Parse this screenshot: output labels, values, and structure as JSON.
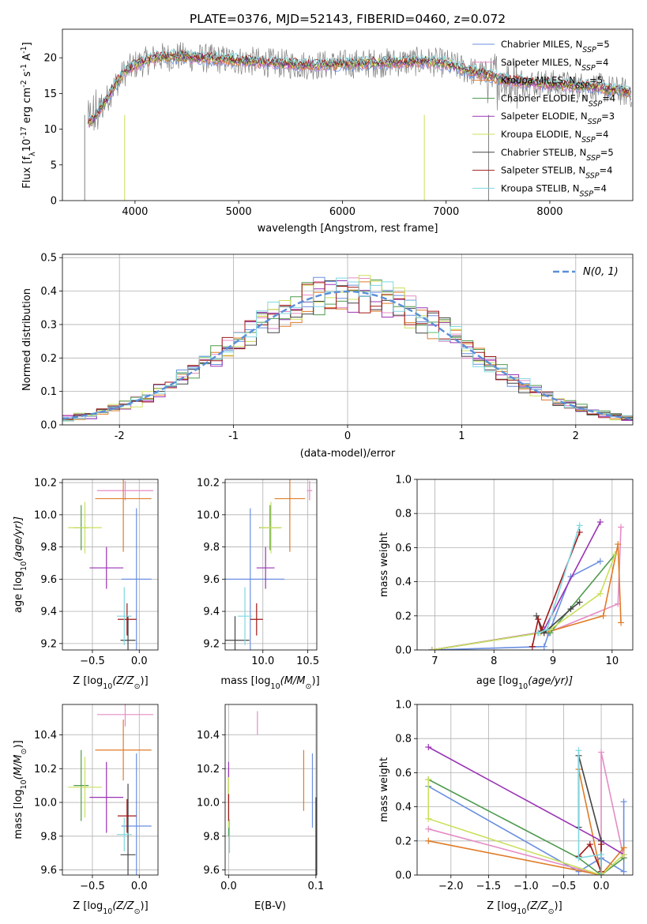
{
  "figure": {
    "title": "PLATE=0376, MJD=52143, FIBERID=0460, z=0.072"
  },
  "colors": {
    "Chabrier MILES": "#6a8fe0",
    "Salpeter MILES": "#e58cc4",
    "Kroupa MILES": "#e07b27",
    "Chabrier ELODIE": "#4f9a4f",
    "Salpeter ELODIE": "#9a33b5",
    "Kroupa ELODIE": "#c9e05c",
    "Chabrier STELIB": "#444444",
    "Salpeter STELIB": "#a01818",
    "Kroupa STELIB": "#7fd8e0",
    "data": "#808080",
    "normal_curve": "#5a8fd8"
  },
  "chart_data": [
    {
      "id": "spectrum",
      "type": "line",
      "xlabel": "wavelength [Angstrom, rest frame]",
      "ylabel": "Flux [f",
      "ylabel_sub": "λ",
      "ylabel_rest": "10",
      "ylabel_exp1": "-17",
      "ylabel_mid": " erg cm",
      "ylabel_exp2": "-2",
      "ylabel_mid2": " s",
      "ylabel_exp3": "-1",
      "ylabel_mid3": " A",
      "ylabel_exp4": "-1",
      "ylabel_end": "]",
      "xlim": [
        3300,
        8800
      ],
      "ylim": [
        0,
        24
      ],
      "xticks": [
        4000,
        5000,
        6000,
        7000,
        8000
      ],
      "yticks": [
        0,
        5,
        10,
        15,
        20
      ],
      "grid": false,
      "legend_position": "upper-right",
      "legend": [
        {
          "label": "Chabrier MILES, N",
          "sub": "SSP",
          "suffix": "=5",
          "color": "#6a8fe0"
        },
        {
          "label": "Salpeter MILES, N",
          "sub": "SSP",
          "suffix": "=4",
          "color": "#e58cc4"
        },
        {
          "label": "Kroupa MILES, N",
          "sub": "SSP",
          "suffix": "=5",
          "color": "#e07b27"
        },
        {
          "label": "Chabrier ELODIE, N",
          "sub": "SSP",
          "suffix": "=4",
          "color": "#4f9a4f"
        },
        {
          "label": "Salpeter ELODIE, N",
          "sub": "SSP",
          "suffix": "=3",
          "color": "#9a33b5"
        },
        {
          "label": "Kroupa ELODIE, N",
          "sub": "SSP",
          "suffix": "=4",
          "color": "#c9e05c"
        },
        {
          "label": "Chabrier STELIB, N",
          "sub": "SSP",
          "suffix": "=5",
          "color": "#444444"
        },
        {
          "label": "Salpeter STELIB, N",
          "sub": "SSP",
          "suffix": "=4",
          "color": "#a01818"
        },
        {
          "label": "Kroupa STELIB, N",
          "sub": "SSP",
          "suffix": "=4",
          "color": "#7fd8e0"
        }
      ],
      "continuum": {
        "x": [
          3550,
          3600,
          3700,
          3800,
          3900,
          4000,
          4100,
          4200,
          4400,
          4600,
          4800,
          5000,
          5200,
          5400,
          5600,
          5800,
          6000,
          6200,
          6400,
          6600,
          6800,
          7000,
          7200,
          7400,
          7600,
          7800,
          8000,
          8200,
          8400,
          8600,
          8800
        ],
        "y": [
          11.0,
          11.5,
          13.5,
          16.0,
          18.0,
          19.0,
          19.5,
          20.0,
          20.2,
          20.0,
          19.8,
          19.6,
          19.4,
          19.2,
          19.0,
          19.0,
          19.1,
          19.2,
          19.3,
          19.4,
          19.5,
          19.2,
          18.3,
          17.5,
          16.8,
          16.5,
          16.3,
          16.1,
          16.0,
          15.5,
          15.0
        ]
      }
    },
    {
      "id": "residuals",
      "type": "histogram",
      "xlabel": "(data-model)/error",
      "ylabel": "Normed distribution",
      "xlim": [
        -2.5,
        2.5
      ],
      "ylim": [
        0,
        0.51
      ],
      "xticks": [
        -2,
        -1,
        0,
        1,
        2
      ],
      "yticks": [
        0.0,
        0.1,
        0.2,
        0.3,
        0.4,
        0.5
      ],
      "grid": true,
      "legend_position": "upper-right",
      "legend_label": "N(0, 1)",
      "bin_width": 0.1,
      "bin_start": -2.5
    },
    {
      "id": "age-vs-Z",
      "type": "errorbar",
      "xlabel": "Z [log",
      "xlabel_sub": "10",
      "xlabel_end": "(Z/Z",
      "xlabel_sun": "⊙",
      "xlabel_close": ")]",
      "ylabel": "age  [log",
      "ylabel_sub": "10",
      "ylabel_end": "(age/yr)]",
      "xlim": [
        -0.82,
        0.2
      ],
      "ylim": [
        9.16,
        10.22
      ],
      "xticks": [
        -0.5,
        0.0
      ],
      "xticklabels": [
        "−0.5",
        "0.0"
      ],
      "yticks": [
        9.2,
        9.4,
        9.6,
        9.8,
        10.0,
        10.2
      ],
      "grid": true,
      "points": [
        {
          "model": "Chabrier MILES",
          "x": -0.03,
          "xerr": 0.16,
          "y": 9.6,
          "yerr": 0.44
        },
        {
          "model": "Salpeter MILES",
          "x": -0.15,
          "xerr": 0.3,
          "y": 10.15,
          "yerr": 0.06
        },
        {
          "model": "Kroupa MILES",
          "x": -0.17,
          "xerr": 0.3,
          "y": 10.1,
          "yerr": 0.33
        },
        {
          "model": "Chabrier ELODIE",
          "x": -0.62,
          "xerr": 0.08,
          "y": 9.92,
          "yerr": 0.14
        },
        {
          "model": "Salpeter ELODIE",
          "x": -0.35,
          "xerr": 0.18,
          "y": 9.67,
          "yerr": 0.13
        },
        {
          "model": "Kroupa ELODIE",
          "x": -0.58,
          "xerr": 0.18,
          "y": 9.92,
          "yerr": 0.16
        },
        {
          "model": "Chabrier STELIB",
          "x": -0.12,
          "xerr": 0.08,
          "y": 9.22,
          "yerr": 0.15
        },
        {
          "model": "Salpeter STELIB",
          "x": -0.13,
          "xerr": 0.1,
          "y": 9.35,
          "yerr": 0.1
        },
        {
          "model": "Kroupa STELIB",
          "x": -0.16,
          "xerr": 0.08,
          "y": 9.37,
          "yerr": 0.18
        }
      ]
    },
    {
      "id": "age-vs-mass",
      "type": "errorbar",
      "xlabel": "mass [log",
      "xlabel_sub": "10",
      "xlabel_end": "(M/M",
      "xlabel_sun": "⊙",
      "xlabel_close": ")]",
      "xlim": [
        9.58,
        10.6
      ],
      "ylim": [
        9.16,
        10.22
      ],
      "xticks": [
        10.0,
        10.5
      ],
      "xticklabels": [
        "10.0",
        "10.5"
      ],
      "yticks": [
        9.2,
        9.4,
        9.6,
        9.8,
        10.0,
        10.2
      ],
      "grid": true,
      "points": [
        {
          "model": "Chabrier MILES",
          "x": 9.86,
          "xerr": 0.38,
          "y": 9.6,
          "yerr": 0.44
        },
        {
          "model": "Salpeter MILES",
          "x": 10.52,
          "xerr": 0.03,
          "y": 10.15,
          "yerr": 0.06
        },
        {
          "model": "Kroupa MILES",
          "x": 10.3,
          "xerr": 0.17,
          "y": 10.1,
          "yerr": 0.33
        },
        {
          "model": "Chabrier ELODIE",
          "x": 10.08,
          "xerr": 0.12,
          "y": 9.92,
          "yerr": 0.14
        },
        {
          "model": "Salpeter ELODIE",
          "x": 10.03,
          "xerr": 0.1,
          "y": 9.67,
          "yerr": 0.13
        },
        {
          "model": "Kroupa ELODIE",
          "x": 10.09,
          "xerr": 0.12,
          "y": 9.92,
          "yerr": 0.16
        },
        {
          "model": "Chabrier STELIB",
          "x": 9.69,
          "xerr": 0.16,
          "y": 9.22,
          "yerr": 0.15
        },
        {
          "model": "Salpeter STELIB",
          "x": 9.93,
          "xerr": 0.07,
          "y": 9.35,
          "yerr": 0.1
        },
        {
          "model": "Kroupa STELIB",
          "x": 9.8,
          "xerr": 0.08,
          "y": 9.37,
          "yerr": 0.18
        }
      ]
    },
    {
      "id": "mass-weight-vs-age",
      "type": "line",
      "xlabel": "age  [log",
      "xlabel_sub": "10",
      "xlabel_end": "(age/yr)]",
      "ylabel": "mass weight",
      "xlim": [
        6.7,
        10.35
      ],
      "ylim": [
        0,
        1
      ],
      "xticks": [
        7,
        8,
        9,
        10
      ],
      "xticklabels": [
        "7",
        "8",
        "9",
        "10"
      ],
      "yticks": [
        0.0,
        0.2,
        0.4,
        0.6,
        0.8,
        1.0
      ],
      "grid": true,
      "series": [
        {
          "model": "Chabrier MILES",
          "x": [
            6.95,
            8.85,
            8.93,
            9.3,
            9.8
          ],
          "y": [
            0.0,
            0.02,
            0.1,
            0.43,
            0.52
          ]
        },
        {
          "model": "Salpeter MILES",
          "x": [
            6.95,
            8.75,
            8.9,
            10.1,
            10.15
          ],
          "y": [
            0.0,
            0.1,
            0.1,
            0.27,
            0.72
          ]
        },
        {
          "model": "Kroupa MILES",
          "x": [
            6.95,
            8.75,
            8.85,
            9.85,
            10.1,
            10.15
          ],
          "y": [
            0.0,
            0.1,
            0.1,
            0.2,
            0.62,
            0.16
          ]
        },
        {
          "model": "Chabrier ELODIE",
          "x": [
            6.95,
            8.78,
            8.95,
            10.05
          ],
          "y": [
            0.0,
            0.1,
            0.1,
            0.56
          ]
        },
        {
          "model": "Salpeter ELODIE",
          "x": [
            6.95,
            8.75,
            8.85,
            9.8
          ],
          "y": [
            0.0,
            0.1,
            0.12,
            0.75
          ]
        },
        {
          "model": "Kroupa ELODIE",
          "x": [
            6.95,
            8.78,
            8.95,
            9.8,
            10.05
          ],
          "y": [
            0.0,
            0.1,
            0.12,
            0.33,
            0.56
          ]
        },
        {
          "model": "Chabrier STELIB",
          "x": [
            8.72,
            8.85,
            9.3,
            9.45
          ],
          "y": [
            0.2,
            0.1,
            0.24,
            0.28
          ]
        },
        {
          "model": "Salpeter STELIB",
          "x": [
            8.65,
            8.75,
            8.8,
            9.45
          ],
          "y": [
            0.02,
            0.18,
            0.11,
            0.69
          ]
        },
        {
          "model": "Kroupa STELIB",
          "x": [
            8.75,
            8.9,
            9.45
          ],
          "y": [
            0.1,
            0.12,
            0.73
          ]
        }
      ]
    },
    {
      "id": "mass-vs-Z",
      "type": "errorbar",
      "xlabel": "Z [log",
      "xlabel_sub": "10",
      "xlabel_end": "(Z/Z",
      "xlabel_sun": "⊙",
      "xlabel_close": ")]",
      "ylabel": "mass [log",
      "ylabel_sub": "10",
      "ylabel_end": "(M/M",
      "ylabel_sun": "⊙",
      "ylabel_close": ")]",
      "xlim": [
        -0.82,
        0.2
      ],
      "ylim": [
        9.57,
        10.58
      ],
      "xticks": [
        -0.5,
        0.0
      ],
      "xticklabels": [
        "−0.5",
        "0.0"
      ],
      "yticks": [
        9.6,
        9.8,
        10.0,
        10.2,
        10.4
      ],
      "grid": true,
      "points": [
        {
          "model": "Chabrier MILES",
          "x": -0.03,
          "xerr": 0.16,
          "y": 9.86,
          "yerr": 0.43
        },
        {
          "model": "Salpeter MILES",
          "x": -0.15,
          "xerr": 0.3,
          "y": 10.52,
          "yerr": 0.07
        },
        {
          "model": "Kroupa MILES",
          "x": -0.17,
          "xerr": 0.3,
          "y": 10.31,
          "yerr": 0.18
        },
        {
          "model": "Chabrier ELODIE",
          "x": -0.62,
          "xerr": 0.08,
          "y": 10.1,
          "yerr": 0.21
        },
        {
          "model": "Salpeter ELODIE",
          "x": -0.35,
          "xerr": 0.18,
          "y": 10.03,
          "yerr": 0.21
        },
        {
          "model": "Kroupa ELODIE",
          "x": -0.58,
          "xerr": 0.18,
          "y": 10.09,
          "yerr": 0.18
        },
        {
          "model": "Chabrier STELIB",
          "x": -0.12,
          "xerr": 0.08,
          "y": 9.69,
          "yerr": 0.42
        },
        {
          "model": "Salpeter STELIB",
          "x": -0.13,
          "xerr": 0.1,
          "y": 9.92,
          "yerr": 0.1
        },
        {
          "model": "Kroupa STELIB",
          "x": -0.16,
          "xerr": 0.08,
          "y": 9.81,
          "yerr": 0.1
        }
      ]
    },
    {
      "id": "mass-vs-ebv",
      "type": "errorbar",
      "xlabel": "E(B-V)",
      "xlim": [
        -0.004,
        0.101
      ],
      "ylim": [
        9.57,
        10.58
      ],
      "xticks": [
        0.0,
        0.1
      ],
      "xticklabels": [
        "0.0",
        "0.1"
      ],
      "yticks": [
        9.6,
        9.8,
        10.0,
        10.2,
        10.4
      ],
      "grid": true,
      "points": [
        {
          "model": "Chabrier MILES",
          "x": 0.096,
          "y": 10.07,
          "yerr": 0.22
        },
        {
          "model": "Salpeter MILES",
          "x": 0.033,
          "y": 10.47,
          "yerr": 0.07
        },
        {
          "model": "Kroupa MILES",
          "x": 0.086,
          "y": 10.13,
          "yerr": 0.18
        },
        {
          "model": "Chabrier ELODIE",
          "x": 0.0,
          "y": 10.0,
          "yerr": 0.2
        },
        {
          "model": "Salpeter ELODIE",
          "x": 0.0,
          "y": 10.12,
          "yerr": 0.12
        },
        {
          "model": "Kroupa ELODIE",
          "x": 0.0,
          "y": 10.0,
          "yerr": 0.15
        },
        {
          "model": "Chabrier STELIB",
          "x": 0.1,
          "y": 9.8,
          "yerr": 0.23
        },
        {
          "model": "Salpeter STELIB",
          "x": 0.0,
          "y": 9.97,
          "yerr": 0.08
        },
        {
          "model": "Kroupa STELIB",
          "x": 0.001,
          "y": 9.8,
          "yerr": 0.1
        }
      ]
    },
    {
      "id": "mass-weight-vs-Z",
      "type": "line",
      "xlabel": "Z [log",
      "xlabel_sub": "10",
      "xlabel_end": "(Z/Z",
      "xlabel_sun": "⊙",
      "xlabel_close": ")]",
      "ylabel": "mass weight",
      "xlim": [
        -2.45,
        0.42
      ],
      "ylim": [
        0,
        1
      ],
      "xticks": [
        -2.0,
        -1.5,
        -1.0,
        -0.5,
        0.0
      ],
      "xticklabels": [
        "−2.0",
        "−1.5",
        "−1.0",
        "−0.5",
        "0.0"
      ],
      "yticks": [
        0.0,
        0.2,
        0.4,
        0.6,
        0.8,
        1.0
      ],
      "grid": true,
      "series": [
        {
          "model": "Chabrier MILES",
          "x": [
            -2.3,
            -0.3,
            0.0,
            0.3,
            0.3
          ],
          "y": [
            0.52,
            0.02,
            0.1,
            0.02,
            0.43
          ]
        },
        {
          "model": "Salpeter MILES",
          "x": [
            -2.3,
            0.0,
            0.0,
            0.3
          ],
          "y": [
            0.27,
            0.0,
            0.72,
            0.1
          ]
        },
        {
          "model": "Kroupa MILES",
          "x": [
            -2.3,
            0.0,
            -0.3,
            0.0,
            0.3,
            0.3
          ],
          "y": [
            0.2,
            0.0,
            0.62,
            0.0,
            0.16,
            0.1
          ]
        },
        {
          "model": "Chabrier ELODIE",
          "x": [
            -2.3,
            -0.3,
            0.0,
            0.3
          ],
          "y": [
            0.56,
            0.1,
            0.0,
            0.1
          ]
        },
        {
          "model": "Salpeter ELODIE",
          "x": [
            -2.3,
            0.0,
            0.3
          ],
          "y": [
            0.75,
            0.2,
            0.12
          ]
        },
        {
          "model": "Kroupa ELODIE",
          "x": [
            -2.3,
            -2.3,
            0.0,
            0.3
          ],
          "y": [
            0.56,
            0.33,
            0.0,
            0.12
          ]
        },
        {
          "model": "Chabrier STELIB",
          "x": [
            -0.3,
            -0.3,
            0.0,
            0.0
          ],
          "y": [
            0.28,
            0.7,
            0.2,
            0.0
          ]
        },
        {
          "model": "Salpeter STELIB",
          "x": [
            -0.3,
            -0.15,
            0.0,
            0.0
          ],
          "y": [
            0.11,
            0.18,
            0.02,
            0.18
          ]
        },
        {
          "model": "Kroupa STELIB",
          "x": [
            -0.3,
            -0.3,
            0.0,
            0.0
          ],
          "y": [
            0.73,
            0.1,
            0.12,
            0.0
          ]
        }
      ]
    }
  ]
}
